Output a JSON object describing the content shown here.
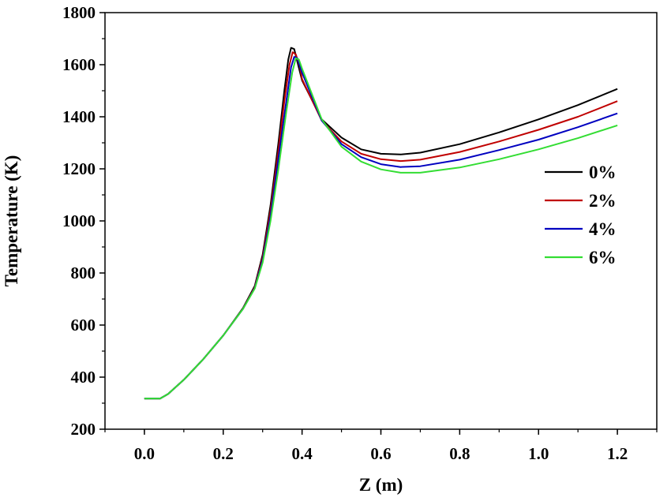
{
  "chart_data": {
    "type": "line",
    "title": "",
    "xlabel": "Z (m)",
    "ylabel": "Temperature (K)",
    "xlim": [
      -0.1,
      1.3
    ],
    "ylim": [
      200,
      1800
    ],
    "x_ticks": [
      "0.0",
      "0.2",
      "0.4",
      "0.6",
      "0.8",
      "1.0",
      "1.2"
    ],
    "y_ticks": [
      "200",
      "400",
      "600",
      "800",
      "1000",
      "1200",
      "1400",
      "1600",
      "1800"
    ],
    "grid": false,
    "legend_position": "right",
    "series": [
      {
        "name": "0%",
        "color": "#000000",
        "points": [
          [
            0.0,
            318
          ],
          [
            0.04,
            318
          ],
          [
            0.06,
            335
          ],
          [
            0.1,
            390
          ],
          [
            0.15,
            470
          ],
          [
            0.2,
            560
          ],
          [
            0.25,
            665
          ],
          [
            0.28,
            750
          ],
          [
            0.3,
            870
          ],
          [
            0.32,
            1060
          ],
          [
            0.34,
            1300
          ],
          [
            0.355,
            1500
          ],
          [
            0.365,
            1620
          ],
          [
            0.372,
            1665
          ],
          [
            0.38,
            1660
          ],
          [
            0.39,
            1600
          ],
          [
            0.4,
            1540
          ],
          [
            0.45,
            1390
          ],
          [
            0.5,
            1320
          ],
          [
            0.55,
            1275
          ],
          [
            0.6,
            1258
          ],
          [
            0.65,
            1255
          ],
          [
            0.7,
            1262
          ],
          [
            0.8,
            1295
          ],
          [
            0.9,
            1340
          ],
          [
            1.0,
            1390
          ],
          [
            1.1,
            1445
          ],
          [
            1.2,
            1507
          ]
        ]
      },
      {
        "name": "2%",
        "color": "#c00000",
        "points": [
          [
            0.0,
            318
          ],
          [
            0.04,
            318
          ],
          [
            0.06,
            335
          ],
          [
            0.1,
            390
          ],
          [
            0.15,
            470
          ],
          [
            0.2,
            560
          ],
          [
            0.25,
            663
          ],
          [
            0.28,
            745
          ],
          [
            0.3,
            860
          ],
          [
            0.32,
            1040
          ],
          [
            0.34,
            1270
          ],
          [
            0.355,
            1460
          ],
          [
            0.368,
            1600
          ],
          [
            0.376,
            1648
          ],
          [
            0.384,
            1640
          ],
          [
            0.395,
            1590
          ],
          [
            0.4,
            1545
          ],
          [
            0.45,
            1385
          ],
          [
            0.5,
            1305
          ],
          [
            0.55,
            1258
          ],
          [
            0.6,
            1237
          ],
          [
            0.65,
            1230
          ],
          [
            0.7,
            1235
          ],
          [
            0.8,
            1265
          ],
          [
            0.9,
            1305
          ],
          [
            1.0,
            1350
          ],
          [
            1.1,
            1400
          ],
          [
            1.2,
            1460
          ]
        ]
      },
      {
        "name": "4%",
        "color": "#0000c0",
        "points": [
          [
            0.0,
            318
          ],
          [
            0.04,
            318
          ],
          [
            0.06,
            335
          ],
          [
            0.1,
            390
          ],
          [
            0.15,
            470
          ],
          [
            0.2,
            560
          ],
          [
            0.25,
            662
          ],
          [
            0.28,
            742
          ],
          [
            0.3,
            850
          ],
          [
            0.32,
            1020
          ],
          [
            0.34,
            1240
          ],
          [
            0.36,
            1460
          ],
          [
            0.372,
            1590
          ],
          [
            0.38,
            1630
          ],
          [
            0.388,
            1625
          ],
          [
            0.4,
            1570
          ],
          [
            0.45,
            1385
          ],
          [
            0.5,
            1295
          ],
          [
            0.55,
            1245
          ],
          [
            0.6,
            1218
          ],
          [
            0.65,
            1207
          ],
          [
            0.7,
            1210
          ],
          [
            0.8,
            1235
          ],
          [
            0.9,
            1272
          ],
          [
            1.0,
            1312
          ],
          [
            1.1,
            1360
          ],
          [
            1.2,
            1413
          ]
        ]
      },
      {
        "name": "6%",
        "color": "#33dd33",
        "points": [
          [
            0.0,
            318
          ],
          [
            0.04,
            318
          ],
          [
            0.06,
            335
          ],
          [
            0.1,
            390
          ],
          [
            0.15,
            470
          ],
          [
            0.2,
            560
          ],
          [
            0.25,
            662
          ],
          [
            0.28,
            740
          ],
          [
            0.3,
            840
          ],
          [
            0.32,
            1000
          ],
          [
            0.34,
            1200
          ],
          [
            0.36,
            1420
          ],
          [
            0.375,
            1570
          ],
          [
            0.384,
            1625
          ],
          [
            0.392,
            1620
          ],
          [
            0.4,
            1585
          ],
          [
            0.45,
            1390
          ],
          [
            0.5,
            1285
          ],
          [
            0.55,
            1228
          ],
          [
            0.6,
            1198
          ],
          [
            0.65,
            1185
          ],
          [
            0.7,
            1185
          ],
          [
            0.8,
            1205
          ],
          [
            0.9,
            1237
          ],
          [
            1.0,
            1275
          ],
          [
            1.1,
            1318
          ],
          [
            1.2,
            1367
          ]
        ]
      }
    ]
  }
}
